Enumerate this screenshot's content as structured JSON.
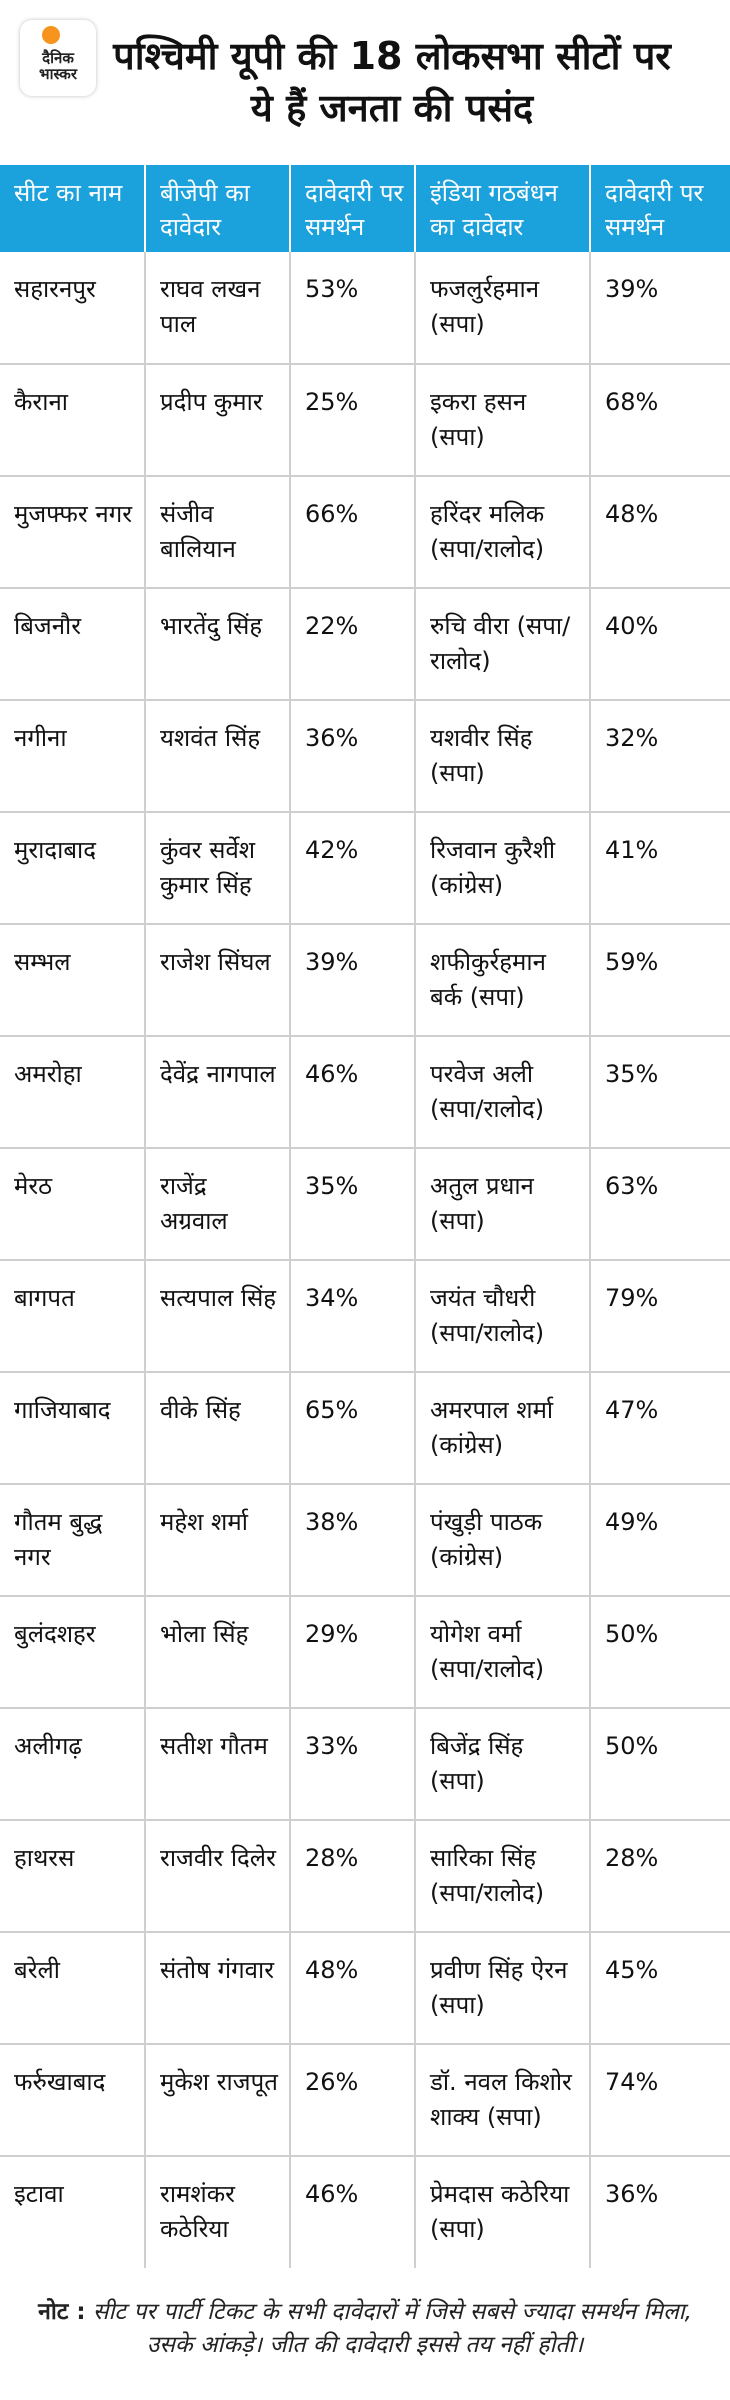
{
  "header": {
    "logo": "दैनिक भास्कर",
    "title": "पश्चिमी यूपी की 18 लोकसभा सीटों पर ये हैं जनता की पसंद"
  },
  "table": {
    "columns": [
      "सीट का नाम",
      "बीजेपी का दावेदार",
      "दावेदारी पर समर्थन",
      "इंडिया गठबंधन का दावेदार",
      "दावेदारी पर समर्थन"
    ],
    "rows": [
      [
        "सहारनपुर",
        "राघव लखन पाल",
        "53%",
        "फजलुर्रहमान (सपा)",
        "39%"
      ],
      [
        "कैराना",
        "प्रदीप कुमार",
        "25%",
        "इकरा हसन (सपा)",
        "68%"
      ],
      [
        "मुजफ्फर नगर",
        "संजीव बालियान",
        "66%",
        "हरिंदर मलिक (सपा/रालोद)",
        "48%"
      ],
      [
        "बिजनौर",
        "भारतेंदु सिंह",
        "22%",
        "रुचि वीरा (सपा/रालोद)",
        "40%"
      ],
      [
        "नगीना",
        "यशवंत सिंह",
        "36%",
        "यशवीर सिंह (सपा)",
        "32%"
      ],
      [
        "मुरादाबाद",
        "कुंवर सर्वेश कुमार सिंह",
        "42%",
        "रिजवान कुरैशी (कांग्रेस)",
        "41%"
      ],
      [
        "सम्भल",
        "राजेश सिंघल",
        "39%",
        "शफीकुर्रहमान बर्क (सपा)",
        "59%"
      ],
      [
        "अमरोहा",
        "देवेंद्र नागपाल",
        "46%",
        "परवेज अली (सपा/रालोद)",
        "35%"
      ],
      [
        "मेरठ",
        "राजेंद्र अग्रवाल",
        "35%",
        "अतुल प्रधान (सपा)",
        "63%"
      ],
      [
        "बागपत",
        "सत्यपाल सिंह",
        "34%",
        "जयंत चौधरी (सपा/रालोद)",
        "79%"
      ],
      [
        "गाजियाबाद",
        "वीके सिंह",
        "65%",
        "अमरपाल शर्मा (कांग्रेस)",
        "47%"
      ],
      [
        "गौतम बुद्ध नगर",
        "महेश शर्मा",
        "38%",
        "पंखुड़ी पाठक (कांग्रेस)",
        "49%"
      ],
      [
        "बुलंदशहर",
        "भोला सिंह",
        "29%",
        "योगेश वर्मा (सपा/रालोद)",
        "50%"
      ],
      [
        "अलीगढ़",
        "सतीश गौतम",
        "33%",
        "बिजेंद्र सिंह (सपा)",
        "50%"
      ],
      [
        "हाथरस",
        "राजवीर दिलेर",
        "28%",
        "सारिका सिंह (सपा/रालोद)",
        "28%"
      ],
      [
        "बरेली",
        "संतोष गंगवार",
        "48%",
        "प्रवीण सिंह ऐरन (सपा)",
        "45%"
      ],
      [
        "फर्रुखाबाद",
        "मुकेश राजपूत",
        "26%",
        "डॉ. नवल किशोर शाक्य (सपा)",
        "74%"
      ],
      [
        "इटावा",
        "रामशंकर कठेरिया",
        "46%",
        "प्रेमदास कठेरिया (सपा)",
        "36%"
      ]
    ]
  },
  "note": {
    "label": "नोट :",
    "text": "सीट पर पार्टी टिकट के सभी दावेदारों में जिसे सबसे ज्यादा समर्थन मिला, उसके आंकड़े। जीत की दावेदारी इससे तय नहीं होती।"
  }
}
